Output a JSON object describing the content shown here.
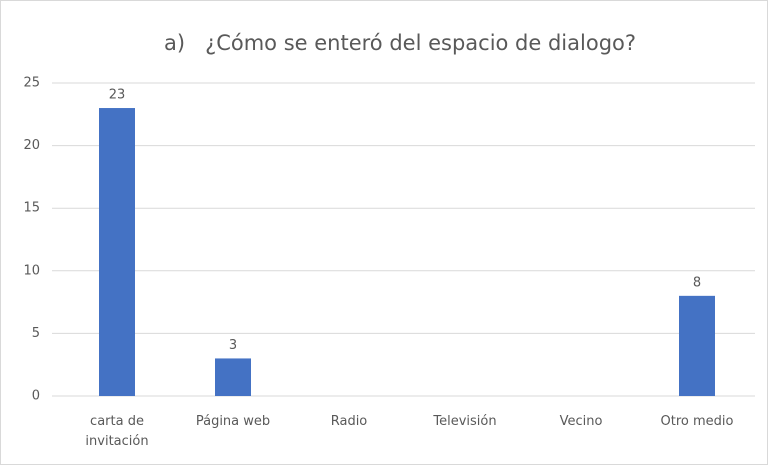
{
  "chart_data": {
    "type": "bar",
    "title": "a)   ¿Cómo se enteró del espacio de dialogo?",
    "categories": [
      "carta de invitación",
      "Página web",
      "Radio",
      "Televisión",
      "Vecino",
      "Otro medio"
    ],
    "values": [
      23,
      3,
      null,
      null,
      null,
      8
    ],
    "color": "#4472c4",
    "ylim": [
      0,
      25
    ],
    "yticks": [
      0,
      5,
      10,
      15,
      20,
      25
    ],
    "grid": true
  }
}
